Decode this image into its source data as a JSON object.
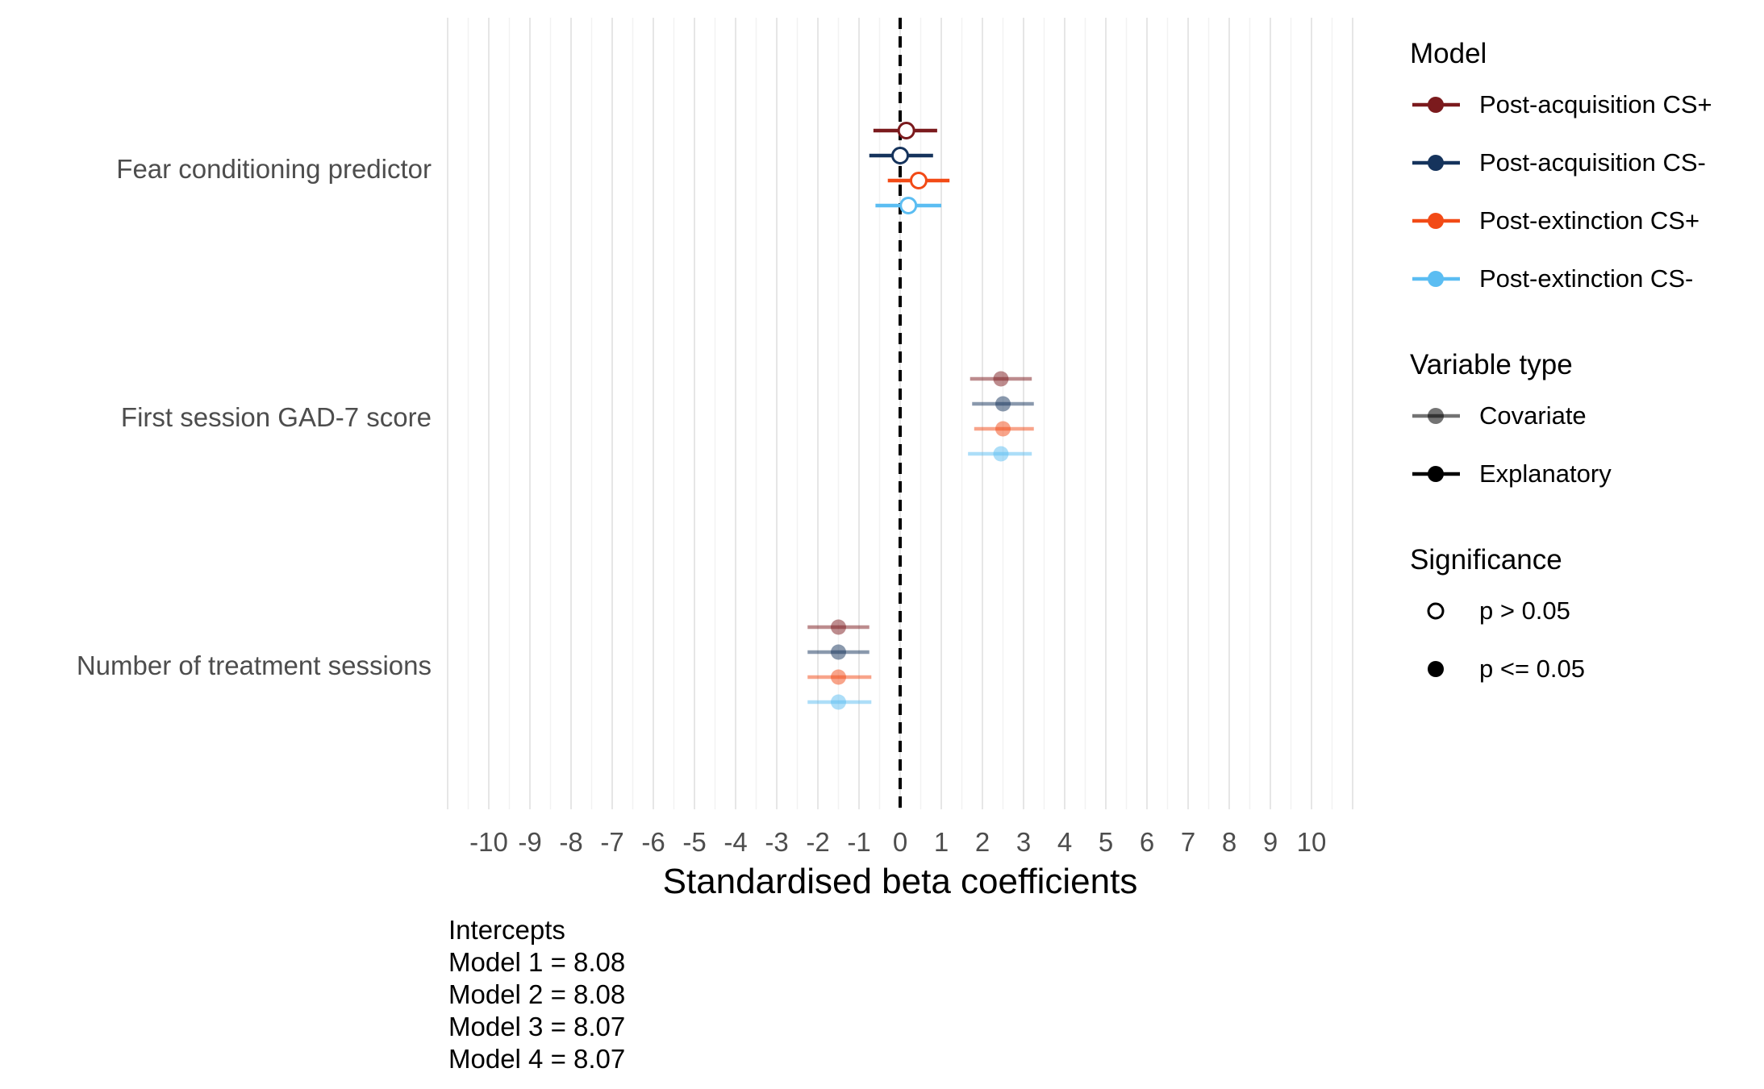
{
  "chart_data": {
    "type": "forest",
    "xlabel": "Standardised beta coefficients",
    "xlim": [
      -11,
      11
    ],
    "xticks": [
      -10,
      -9,
      -8,
      -7,
      -6,
      -5,
      -4,
      -3,
      -2,
      -1,
      0,
      1,
      2,
      3,
      4,
      5,
      6,
      7,
      8,
      9,
      10
    ],
    "reference_line": 0,
    "grid": "vertical",
    "categories": [
      "Fear conditioning predictor",
      "First session GAD-7 score",
      "Number of treatment sessions"
    ],
    "series": [
      {
        "name": "Post-acquisition CS+",
        "color": "#7B1A1D",
        "points": [
          {
            "category": "Fear conditioning predictor",
            "estimate": 0.15,
            "ci": [
              -0.65,
              0.9
            ],
            "variable_type": "Explanatory",
            "significance": "p > 0.05"
          },
          {
            "category": "First session GAD-7 score",
            "estimate": 2.45,
            "ci": [
              1.7,
              3.2
            ],
            "variable_type": "Covariate",
            "significance": "p <= 0.05"
          },
          {
            "category": "Number of treatment sessions",
            "estimate": -1.5,
            "ci": [
              -2.25,
              -0.75
            ],
            "variable_type": "Covariate",
            "significance": "p <= 0.05"
          }
        ]
      },
      {
        "name": "Post-acquisition CS-",
        "color": "#15335C",
        "points": [
          {
            "category": "Fear conditioning predictor",
            "estimate": 0.0,
            "ci": [
              -0.75,
              0.8
            ],
            "variable_type": "Explanatory",
            "significance": "p > 0.05"
          },
          {
            "category": "First session GAD-7 score",
            "estimate": 2.5,
            "ci": [
              1.75,
              3.25
            ],
            "variable_type": "Covariate",
            "significance": "p <= 0.05"
          },
          {
            "category": "Number of treatment sessions",
            "estimate": -1.5,
            "ci": [
              -2.25,
              -0.75
            ],
            "variable_type": "Covariate",
            "significance": "p <= 0.05"
          }
        ]
      },
      {
        "name": "Post-extinction CS+",
        "color": "#F24A16",
        "points": [
          {
            "category": "Fear conditioning predictor",
            "estimate": 0.45,
            "ci": [
              -0.3,
              1.2
            ],
            "variable_type": "Explanatory",
            "significance": "p > 0.05"
          },
          {
            "category": "First session GAD-7 score",
            "estimate": 2.5,
            "ci": [
              1.8,
              3.25
            ],
            "variable_type": "Covariate",
            "significance": "p <= 0.05"
          },
          {
            "category": "Number of treatment sessions",
            "estimate": -1.5,
            "ci": [
              -2.25,
              -0.7
            ],
            "variable_type": "Covariate",
            "significance": "p <= 0.05"
          }
        ]
      },
      {
        "name": "Post-extinction CS-",
        "color": "#5BBDF2",
        "points": [
          {
            "category": "Fear conditioning predictor",
            "estimate": 0.2,
            "ci": [
              -0.6,
              1.0
            ],
            "variable_type": "Explanatory",
            "significance": "p > 0.05"
          },
          {
            "category": "First session GAD-7 score",
            "estimate": 2.45,
            "ci": [
              1.65,
              3.2
            ],
            "variable_type": "Covariate",
            "significance": "p <= 0.05"
          },
          {
            "category": "Number of treatment sessions",
            "estimate": -1.5,
            "ci": [
              -2.25,
              -0.7
            ],
            "variable_type": "Covariate",
            "significance": "p <= 0.05"
          }
        ]
      }
    ],
    "covariate_opacity": 0.5,
    "legend": {
      "placement": "right",
      "groups": [
        {
          "title": "Model",
          "items": [
            {
              "label": "Post-acquisition CS+",
              "color": "#7B1A1D",
              "key": "line-filled"
            },
            {
              "label": "Post-acquisition CS-",
              "color": "#15335C",
              "key": "line-filled"
            },
            {
              "label": "Post-extinction CS+",
              "color": "#F24A16",
              "key": "line-filled"
            },
            {
              "label": "Post-extinction CS-",
              "color": "#5BBDF2",
              "key": "line-filled"
            }
          ]
        },
        {
          "title": "Variable type",
          "items": [
            {
              "label": "Covariate",
              "color": "#000000",
              "key": "line-faded"
            },
            {
              "label": "Explanatory",
              "color": "#000000",
              "key": "line-filled"
            }
          ]
        },
        {
          "title": "Significance",
          "items": [
            {
              "label": "p > 0.05",
              "color": "#000000",
              "key": "point-open"
            },
            {
              "label": "p <= 0.05",
              "color": "#000000",
              "key": "point-filled"
            }
          ]
        }
      ]
    }
  },
  "caption": {
    "lines": [
      "Intercepts",
      "Model 1 = 8.08",
      "Model 2 = 8.08",
      "Model 3 = 8.07",
      "Model 4 = 8.07"
    ]
  }
}
